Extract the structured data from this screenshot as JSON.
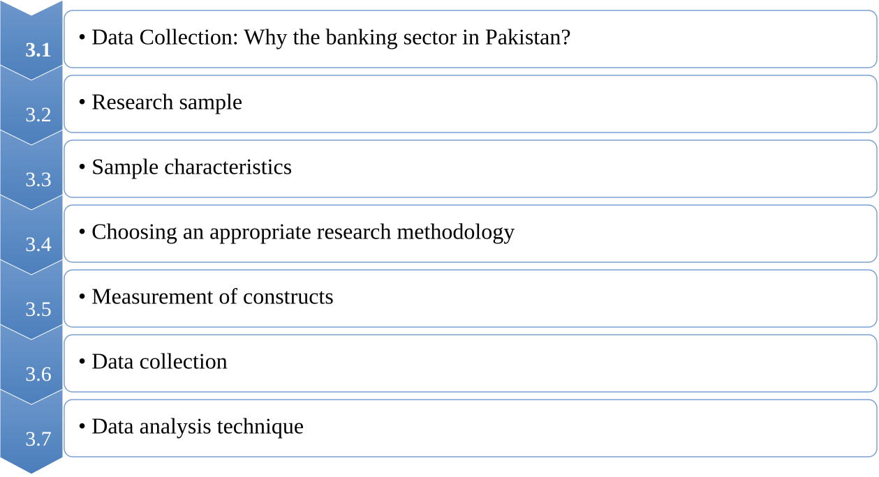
{
  "items": [
    {
      "number": "3.1",
      "text": "• Data Collection: Why the banking sector in Pakistan?"
    },
    {
      "number": "3.2",
      "text": "• Research sample"
    },
    {
      "number": "3.3",
      "text": "• Sample characteristics"
    },
    {
      "number": "3.4",
      "text": "• Choosing an appropriate research methodology"
    },
    {
      "number": "3.5",
      "text": "• Measurement of constructs"
    },
    {
      "number": "3.6",
      "text": "• Data collection"
    },
    {
      "number": "3.7",
      "text": "• Data analysis technique"
    }
  ]
}
